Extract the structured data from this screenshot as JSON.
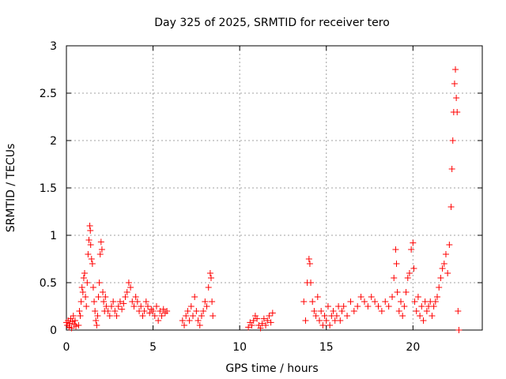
{
  "chart_data": {
    "type": "scatter",
    "title": "Day 325 of 2025, SRMTID for receiver tero",
    "xlabel": "GPS time / hours",
    "ylabel": "SRMTID / TECUs",
    "xlim": [
      0,
      24
    ],
    "ylim": [
      0,
      3
    ],
    "xticks": [
      0,
      5,
      10,
      15,
      20
    ],
    "yticks": [
      0,
      0.5,
      1,
      1.5,
      2,
      2.5,
      3
    ],
    "xtick_labels": [
      "0",
      "5",
      "10",
      "15",
      "20"
    ],
    "ytick_labels": [
      "0",
      "0.5",
      "1",
      "1.5",
      "2",
      "2.5",
      "3"
    ],
    "grid": true,
    "marker": "+",
    "color": "#ff0000",
    "series": [
      {
        "name": "tero",
        "points": [
          [
            0.0,
            0.08
          ],
          [
            0.05,
            0.05
          ],
          [
            0.1,
            0.1
          ],
          [
            0.15,
            0.03
          ],
          [
            0.2,
            0.07
          ],
          [
            0.25,
            0.12
          ],
          [
            0.3,
            0.02
          ],
          [
            0.35,
            0.09
          ],
          [
            0.4,
            0.15
          ],
          [
            0.45,
            0.06
          ],
          [
            0.5,
            0.1
          ],
          [
            0.55,
            0.04
          ],
          [
            0.7,
            0.05
          ],
          [
            0.75,
            0.2
          ],
          [
            0.8,
            0.15
          ],
          [
            0.85,
            0.3
          ],
          [
            0.9,
            0.45
          ],
          [
            0.95,
            0.4
          ],
          [
            1.0,
            0.55
          ],
          [
            1.05,
            0.6
          ],
          [
            1.1,
            0.35
          ],
          [
            1.15,
            0.25
          ],
          [
            1.2,
            0.5
          ],
          [
            1.25,
            0.8
          ],
          [
            1.3,
            0.95
          ],
          [
            1.35,
            1.1
          ],
          [
            1.38,
            1.05
          ],
          [
            1.4,
            0.9
          ],
          [
            1.45,
            0.75
          ],
          [
            1.5,
            0.7
          ],
          [
            1.55,
            0.45
          ],
          [
            1.6,
            0.3
          ],
          [
            1.65,
            0.2
          ],
          [
            1.7,
            0.1
          ],
          [
            1.75,
            0.05
          ],
          [
            1.8,
            0.15
          ],
          [
            1.85,
            0.35
          ],
          [
            1.9,
            0.5
          ],
          [
            1.95,
            0.8
          ],
          [
            2.0,
            0.93
          ],
          [
            2.05,
            0.85
          ],
          [
            2.1,
            0.4
          ],
          [
            2.15,
            0.3
          ],
          [
            2.2,
            0.2
          ],
          [
            2.25,
            0.35
          ],
          [
            2.3,
            0.25
          ],
          [
            2.4,
            0.2
          ],
          [
            2.5,
            0.15
          ],
          [
            2.6,
            0.25
          ],
          [
            2.7,
            0.3
          ],
          [
            2.8,
            0.2
          ],
          [
            2.9,
            0.15
          ],
          [
            3.0,
            0.25
          ],
          [
            3.1,
            0.3
          ],
          [
            3.2,
            0.22
          ],
          [
            3.3,
            0.28
          ],
          [
            3.4,
            0.35
          ],
          [
            3.5,
            0.4
          ],
          [
            3.6,
            0.5
          ],
          [
            3.7,
            0.45
          ],
          [
            3.8,
            0.3
          ],
          [
            3.9,
            0.25
          ],
          [
            4.0,
            0.35
          ],
          [
            4.1,
            0.3
          ],
          [
            4.2,
            0.2
          ],
          [
            4.3,
            0.25
          ],
          [
            4.4,
            0.15
          ],
          [
            4.5,
            0.2
          ],
          [
            4.6,
            0.3
          ],
          [
            4.7,
            0.25
          ],
          [
            4.8,
            0.18
          ],
          [
            4.9,
            0.22
          ],
          [
            5.0,
            0.2
          ],
          [
            5.1,
            0.15
          ],
          [
            5.2,
            0.25
          ],
          [
            5.3,
            0.1
          ],
          [
            5.4,
            0.2
          ],
          [
            5.5,
            0.15
          ],
          [
            5.6,
            0.22
          ],
          [
            5.7,
            0.18
          ],
          [
            5.8,
            0.2
          ],
          [
            6.7,
            0.1
          ],
          [
            6.8,
            0.05
          ],
          [
            6.9,
            0.15
          ],
          [
            7.0,
            0.2
          ],
          [
            7.1,
            0.1
          ],
          [
            7.2,
            0.25
          ],
          [
            7.3,
            0.15
          ],
          [
            7.4,
            0.35
          ],
          [
            7.5,
            0.2
          ],
          [
            7.6,
            0.1
          ],
          [
            7.7,
            0.05
          ],
          [
            7.8,
            0.15
          ],
          [
            7.9,
            0.2
          ],
          [
            8.0,
            0.3
          ],
          [
            8.1,
            0.25
          ],
          [
            8.2,
            0.45
          ],
          [
            8.3,
            0.6
          ],
          [
            8.35,
            0.55
          ],
          [
            8.4,
            0.3
          ],
          [
            8.45,
            0.15
          ],
          [
            10.5,
            0.03
          ],
          [
            10.6,
            0.08
          ],
          [
            10.7,
            0.05
          ],
          [
            10.8,
            0.1
          ],
          [
            10.9,
            0.15
          ],
          [
            11.0,
            0.12
          ],
          [
            11.1,
            0.05
          ],
          [
            11.2,
            0.02
          ],
          [
            11.3,
            0.07
          ],
          [
            11.4,
            0.12
          ],
          [
            11.5,
            0.05
          ],
          [
            11.6,
            0.1
          ],
          [
            11.7,
            0.15
          ],
          [
            11.8,
            0.08
          ],
          [
            11.9,
            0.18
          ],
          [
            13.7,
            0.3
          ],
          [
            13.8,
            0.1
          ],
          [
            13.9,
            0.5
          ],
          [
            14.0,
            0.75
          ],
          [
            14.05,
            0.7
          ],
          [
            14.1,
            0.5
          ],
          [
            14.2,
            0.3
          ],
          [
            14.3,
            0.2
          ],
          [
            14.4,
            0.15
          ],
          [
            14.5,
            0.35
          ],
          [
            14.6,
            0.1
          ],
          [
            14.7,
            0.2
          ],
          [
            14.8,
            0.05
          ],
          [
            14.9,
            0.15
          ],
          [
            15.0,
            0.1
          ],
          [
            15.1,
            0.25
          ],
          [
            15.2,
            0.05
          ],
          [
            15.3,
            0.15
          ],
          [
            15.4,
            0.2
          ],
          [
            15.5,
            0.1
          ],
          [
            15.6,
            0.15
          ],
          [
            15.7,
            0.25
          ],
          [
            15.8,
            0.1
          ],
          [
            15.9,
            0.2
          ],
          [
            16.0,
            0.25
          ],
          [
            16.2,
            0.15
          ],
          [
            16.4,
            0.3
          ],
          [
            16.6,
            0.2
          ],
          [
            16.8,
            0.25
          ],
          [
            17.0,
            0.35
          ],
          [
            17.2,
            0.3
          ],
          [
            17.4,
            0.25
          ],
          [
            17.6,
            0.35
          ],
          [
            17.8,
            0.3
          ],
          [
            18.0,
            0.25
          ],
          [
            18.2,
            0.2
          ],
          [
            18.4,
            0.3
          ],
          [
            18.6,
            0.25
          ],
          [
            18.8,
            0.35
          ],
          [
            18.9,
            0.55
          ],
          [
            19.0,
            0.85
          ],
          [
            19.05,
            0.7
          ],
          [
            19.1,
            0.4
          ],
          [
            19.2,
            0.2
          ],
          [
            19.3,
            0.3
          ],
          [
            19.4,
            0.15
          ],
          [
            19.5,
            0.25
          ],
          [
            19.6,
            0.4
          ],
          [
            19.7,
            0.55
          ],
          [
            19.8,
            0.6
          ],
          [
            19.9,
            0.85
          ],
          [
            20.0,
            0.92
          ],
          [
            20.05,
            0.65
          ],
          [
            20.1,
            0.3
          ],
          [
            20.2,
            0.2
          ],
          [
            20.3,
            0.35
          ],
          [
            20.4,
            0.15
          ],
          [
            20.5,
            0.25
          ],
          [
            20.6,
            0.1
          ],
          [
            20.7,
            0.3
          ],
          [
            20.8,
            0.2
          ],
          [
            20.9,
            0.25
          ],
          [
            21.0,
            0.3
          ],
          [
            21.1,
            0.15
          ],
          [
            21.2,
            0.25
          ],
          [
            21.3,
            0.3
          ],
          [
            21.4,
            0.35
          ],
          [
            21.5,
            0.45
          ],
          [
            21.6,
            0.55
          ],
          [
            21.7,
            0.65
          ],
          [
            21.8,
            0.7
          ],
          [
            21.9,
            0.8
          ],
          [
            22.0,
            0.6
          ],
          [
            22.1,
            0.9
          ],
          [
            22.2,
            1.3
          ],
          [
            22.25,
            1.7
          ],
          [
            22.3,
            2.0
          ],
          [
            22.35,
            2.3
          ],
          [
            22.4,
            2.6
          ],
          [
            22.45,
            2.75
          ],
          [
            22.5,
            2.45
          ],
          [
            22.55,
            2.3
          ],
          [
            22.6,
            0.2
          ],
          [
            22.65,
            0.0
          ]
        ]
      }
    ]
  }
}
